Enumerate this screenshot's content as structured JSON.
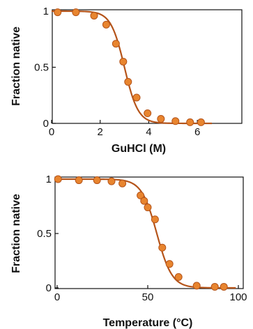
{
  "colors": {
    "curve": "#b5541a",
    "marker_fill": "#e8852f",
    "marker_stroke": "#b5541a",
    "axis": "#111111"
  },
  "chart_data": [
    {
      "type": "scatter",
      "xlabel": "GuHCl (M)",
      "ylabel": "Fraction native",
      "xlim": [
        0,
        7
      ],
      "ylim": [
        0,
        1
      ],
      "x_ticks": [
        0,
        2,
        4,
        6
      ],
      "x_tick_labels": [
        "0",
        "2",
        "4",
        "6"
      ],
      "y_ticks": [
        0,
        0.5,
        1
      ],
      "y_tick_labels": [
        "0",
        "0.5",
        "1"
      ],
      "grid": false,
      "series": [
        {
          "x": [
            0.25,
            1.0,
            1.75,
            2.25,
            2.65,
            2.95,
            3.15,
            3.5,
            3.95,
            4.5,
            5.1,
            5.7,
            6.15
          ],
          "y": [
            0.99,
            0.99,
            0.96,
            0.88,
            0.71,
            0.55,
            0.37,
            0.23,
            0.09,
            0.04,
            0.02,
            0.01,
            0.01
          ]
        }
      ],
      "fit_curve": {
        "model": "two-state sigmoid",
        "midpoint": 3.0,
        "width": 0.28
      }
    },
    {
      "type": "scatter",
      "xlabel": "Temperature (°C)",
      "ylabel": "Fraction native",
      "xlim": [
        0,
        100
      ],
      "ylim": [
        0,
        1
      ],
      "x_ticks": [
        0,
        50,
        100
      ],
      "x_tick_labels": [
        "0",
        "50",
        "100"
      ],
      "y_ticks": [
        0,
        0.5,
        1
      ],
      "y_tick_labels": [
        "0",
        "0.5",
        "1"
      ],
      "grid": false,
      "series": [
        {
          "x": [
            0.5,
            12,
            22,
            30,
            36,
            46,
            48,
            50,
            54,
            58,
            62,
            67,
            77,
            87,
            92
          ],
          "y": [
            1.0,
            0.99,
            0.99,
            0.98,
            0.96,
            0.85,
            0.8,
            0.74,
            0.63,
            0.37,
            0.22,
            0.1,
            0.02,
            0.01,
            0.01
          ]
        }
      ],
      "fit_curve": {
        "model": "two-state sigmoid",
        "midpoint": 55,
        "width": 4.2
      }
    }
  ]
}
